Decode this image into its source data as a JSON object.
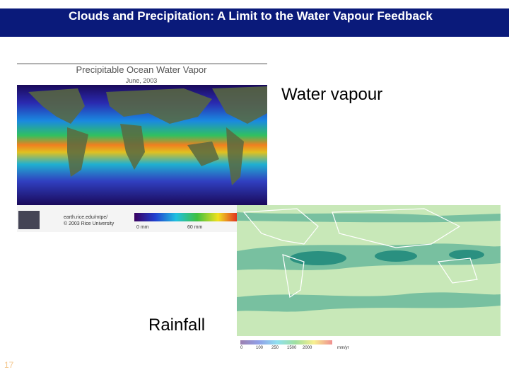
{
  "header": {
    "title": "Clouds and Precipitation: A Limit to the Water Vapour Feedback"
  },
  "water_vapour_map": {
    "title": "Precipitable Ocean Water Vapor",
    "date": "June, 2003",
    "url": "earth.rice.edu/mtpe/",
    "copyright": "© 2003 Rice University",
    "scale_min": "0 mm",
    "scale_max": "60 mm"
  },
  "labels": {
    "water_vapour": "Water vapour",
    "rainfall": "Rainfall"
  },
  "rainfall_map": {
    "legend": [
      "0",
      "100",
      "250",
      "1500",
      "2000"
    ],
    "unit": "mm/yr"
  },
  "slide_number": "17"
}
